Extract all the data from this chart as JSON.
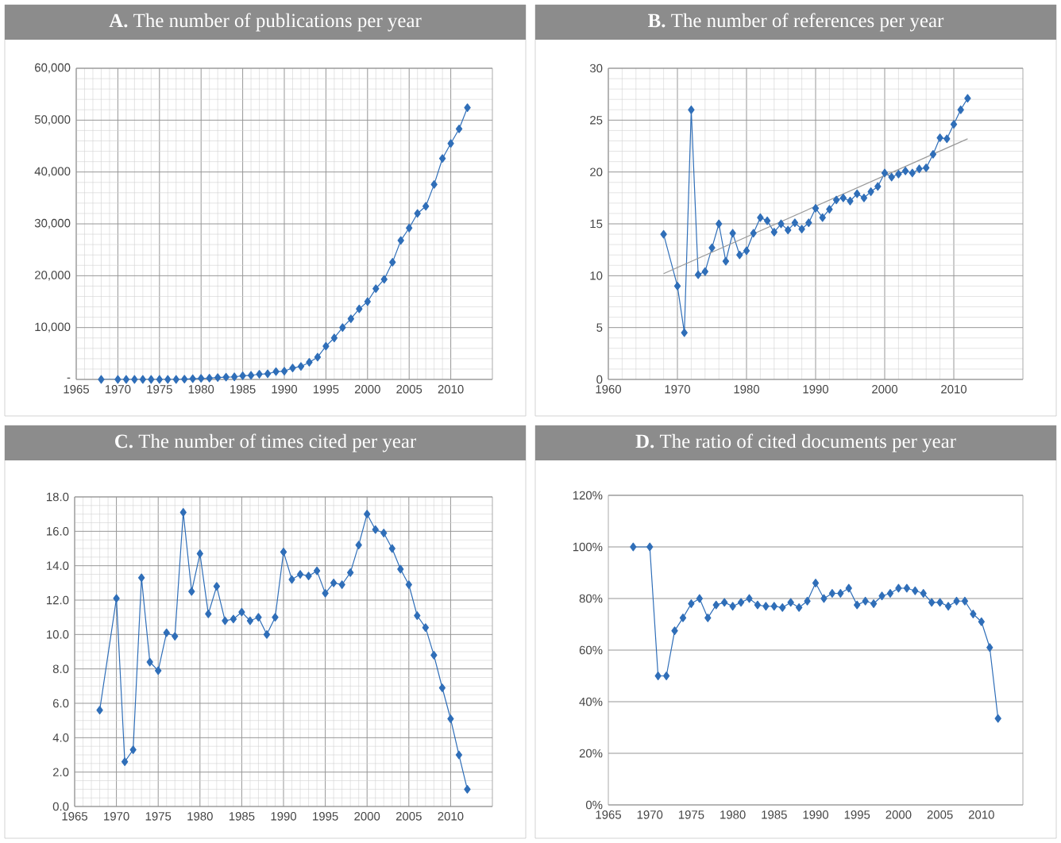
{
  "chart_data": [
    {
      "type": "line",
      "title": "**A.** The number of publications per year",
      "marker": "diamond",
      "grid": true,
      "x": [
        1968,
        1970,
        1971,
        1972,
        1973,
        1974,
        1975,
        1976,
        1977,
        1978,
        1979,
        1980,
        1981,
        1982,
        1983,
        1984,
        1985,
        1986,
        1987,
        1988,
        1989,
        1990,
        1991,
        1992,
        1993,
        1994,
        1995,
        1996,
        1997,
        1998,
        1999,
        2000,
        2001,
        2002,
        2003,
        2004,
        2005,
        2006,
        2007,
        2008,
        2009,
        2010,
        2011,
        2012
      ],
      "series": [
        {
          "color": "#2f6eb8",
          "values": [
            0,
            0,
            0,
            0,
            0,
            0,
            0,
            0,
            0,
            50,
            150,
            200,
            250,
            350,
            450,
            500,
            700,
            800,
            1000,
            1100,
            1500,
            1600,
            2200,
            2500,
            3300,
            4300,
            6400,
            8000,
            10000,
            11700,
            13600,
            15000,
            17500,
            19300,
            22600,
            26800,
            29200,
            32000,
            33400,
            37600,
            42600,
            45500,
            48300,
            52400
          ]
        }
      ],
      "xlim": [
        1965,
        2015
      ],
      "xticks": [
        1965,
        1970,
        1975,
        1980,
        1985,
        1990,
        1995,
        2000,
        2005,
        2010
      ],
      "ylim": [
        0,
        60000
      ],
      "yticks": [
        {
          "value": 0,
          "label": "-"
        },
        {
          "value": 10000,
          "label": "10,000"
        },
        {
          "value": 20000,
          "label": "20,000"
        },
        {
          "value": 30000,
          "label": "30,000"
        },
        {
          "value": 40000,
          "label": "40,000"
        },
        {
          "value": 50000,
          "label": "50,000"
        },
        {
          "value": 60000,
          "label": "60,000"
        }
      ]
    },
    {
      "type": "line",
      "title": "**B.** The number of references per year",
      "marker": "diamond",
      "grid": true,
      "x": [
        1968,
        1970,
        1971,
        1972,
        1973,
        1974,
        1975,
        1976,
        1977,
        1978,
        1979,
        1980,
        1981,
        1982,
        1983,
        1984,
        1985,
        1986,
        1987,
        1988,
        1989,
        1990,
        1991,
        1992,
        1993,
        1994,
        1995,
        1996,
        1997,
        1998,
        1999,
        2000,
        2001,
        2002,
        2003,
        2004,
        2005,
        2006,
        2007,
        2008,
        2009,
        2010,
        2011,
        2012
      ],
      "series": [
        {
          "color": "#2f6eb8",
          "values": [
            14,
            9,
            4.5,
            26,
            10.1,
            10.4,
            12.7,
            15,
            11.4,
            14.1,
            12,
            12.4,
            14.1,
            15.6,
            15.3,
            14.2,
            15,
            14.4,
            15.1,
            14.5,
            15.1,
            16.5,
            15.6,
            16.4,
            17.3,
            17.5,
            17.2,
            17.9,
            17.5,
            18.1,
            18.6,
            19.9,
            19.5,
            19.8,
            20.1,
            19.9,
            20.3,
            20.4,
            21.7,
            23.3,
            23.2,
            24.6,
            26,
            27.1
          ]
        },
        {
          "type": "line",
          "marker": "none",
          "color": "#999999",
          "x": [
            1968,
            2012
          ],
          "values": [
            10.2,
            23.2
          ]
        }
      ],
      "xlim": [
        1960,
        2020
      ],
      "xticks": [
        1960,
        1970,
        1980,
        1990,
        2000,
        2010
      ],
      "ylim": [
        0,
        30
      ],
      "yticks": [
        0,
        5,
        10,
        15,
        20,
        25,
        30
      ]
    },
    {
      "type": "line",
      "title": "**C.** The number of times cited per year",
      "marker": "diamond",
      "grid": true,
      "x": [
        1968,
        1970,
        1971,
        1972,
        1973,
        1974,
        1975,
        1976,
        1977,
        1978,
        1979,
        1980,
        1981,
        1982,
        1983,
        1984,
        1985,
        1986,
        1987,
        1988,
        1989,
        1990,
        1991,
        1992,
        1993,
        1994,
        1995,
        1996,
        1997,
        1998,
        1999,
        2000,
        2001,
        2002,
        2003,
        2004,
        2005,
        2006,
        2007,
        2008,
        2009,
        2010,
        2011,
        2012
      ],
      "series": [
        {
          "color": "#2f6eb8",
          "values": [
            5.6,
            12.1,
            2.6,
            3.3,
            13.3,
            8.4,
            7.9,
            10.1,
            9.9,
            17.1,
            12.5,
            14.7,
            11.2,
            12.8,
            10.8,
            10.9,
            11.3,
            10.8,
            11.0,
            10.0,
            11.0,
            14.8,
            13.2,
            13.5,
            13.4,
            13.7,
            12.4,
            13.0,
            12.9,
            13.6,
            15.2,
            17.0,
            16.1,
            15.9,
            15.0,
            13.8,
            12.9,
            11.1,
            10.4,
            8.8,
            6.9,
            5.1,
            3.0,
            1.0
          ]
        }
      ],
      "xlim": [
        1965,
        2015
      ],
      "xticks": [
        1965,
        1970,
        1975,
        1980,
        1985,
        1990,
        1995,
        2000,
        2005,
        2010
      ],
      "ylim": [
        0,
        18
      ],
      "yticks": [
        {
          "value": 0,
          "label": "0.0"
        },
        {
          "value": 2,
          "label": "2.0"
        },
        {
          "value": 4,
          "label": "4.0"
        },
        {
          "value": 6,
          "label": "6.0"
        },
        {
          "value": 8,
          "label": "8.0"
        },
        {
          "value": 10,
          "label": "10.0"
        },
        {
          "value": 12,
          "label": "12.0"
        },
        {
          "value": 14,
          "label": "14.0"
        },
        {
          "value": 16,
          "label": "16.0"
        },
        {
          "value": 18,
          "label": "18.0"
        }
      ]
    },
    {
      "type": "line",
      "title": "**D.** The ratio of cited documents per year",
      "marker": "diamond",
      "grid": "y",
      "x": [
        1968,
        1970,
        1971,
        1972,
        1973,
        1974,
        1975,
        1976,
        1977,
        1978,
        1979,
        1980,
        1981,
        1982,
        1983,
        1984,
        1985,
        1986,
        1987,
        1988,
        1989,
        1990,
        1991,
        1992,
        1993,
        1994,
        1995,
        1996,
        1997,
        1998,
        1999,
        2000,
        2001,
        2002,
        2003,
        2004,
        2005,
        2006,
        2007,
        2008,
        2009,
        2010,
        2011,
        2012
      ],
      "series": [
        {
          "color": "#2f6eb8",
          "values": [
            100,
            100,
            50,
            50,
            67.5,
            72.5,
            78,
            80,
            72.5,
            77.5,
            78.5,
            77,
            78.5,
            80,
            77.5,
            77,
            77,
            76.5,
            78.5,
            76.5,
            79,
            86,
            80,
            82,
            82,
            84,
            77.5,
            79,
            78,
            81,
            82,
            84,
            84,
            83,
            82,
            78.5,
            78.5,
            77,
            79,
            79,
            74,
            71,
            61,
            33.5
          ]
        }
      ],
      "xlim": [
        1965,
        2015
      ],
      "xticks": [
        1965,
        1970,
        1975,
        1980,
        1985,
        1990,
        1995,
        2000,
        2005,
        2010
      ],
      "ylim": [
        0,
        120
      ],
      "yticks": [
        {
          "value": 0,
          "label": "0%"
        },
        {
          "value": 20,
          "label": "20%"
        },
        {
          "value": 40,
          "label": "40%"
        },
        {
          "value": 60,
          "label": "60%"
        },
        {
          "value": 80,
          "label": "80%"
        },
        {
          "value": 100,
          "label": "100%"
        },
        {
          "value": 120,
          "label": "120%"
        }
      ]
    }
  ]
}
